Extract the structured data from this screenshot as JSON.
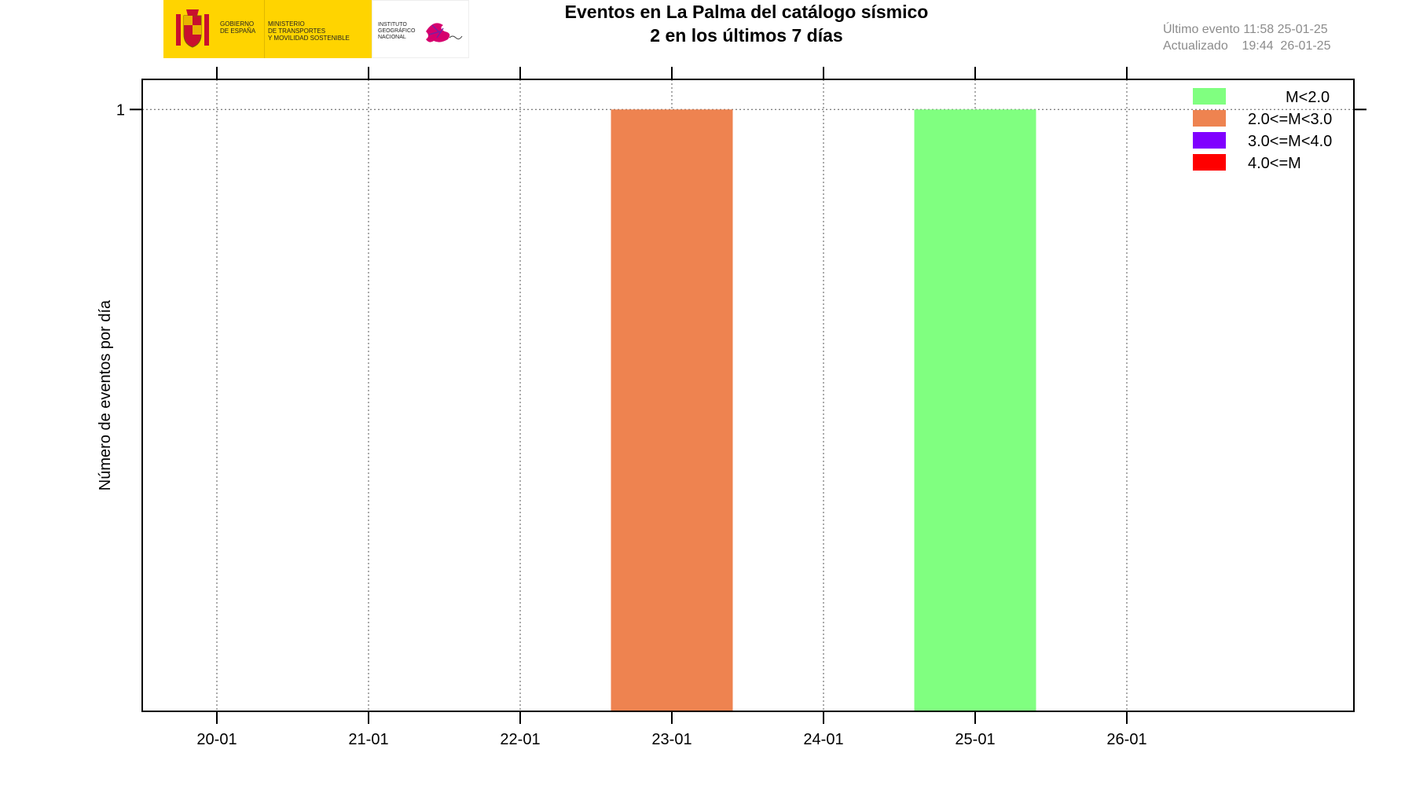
{
  "logo": {
    "government": "GOBIERNO\nDE ESPAÑA",
    "ministry": "MINISTERIO\nDE TRANSPORTES\nY MOVILIDAD SOSTENIBLE",
    "institute": "INSTITUTO\nGEOGRÁFICO\nNACIONAL",
    "colors": {
      "yellow": "#ffd400",
      "magenta": "#d6006e"
    }
  },
  "header": {
    "title_line1": "Eventos en La Palma del catálogo sísmico",
    "title_line2": "2 en los últimos 7 días"
  },
  "info": {
    "last_event": "Último evento 11:58 25-01-25",
    "updated": "Actualizado    19:44  26-01-25"
  },
  "chart_data": {
    "type": "bar",
    "stacked": true,
    "ylabel": "Número de eventos por día",
    "categories": [
      "20-01",
      "21-01",
      "22-01",
      "23-01",
      "24-01",
      "25-01",
      "26-01"
    ],
    "yticks": [
      1
    ],
    "ylim": [
      0,
      1.05
    ],
    "grid": true,
    "legend_position": "top-right",
    "series": [
      {
        "name": "M<2.0",
        "color": "#80ff80",
        "values": [
          0,
          0,
          0,
          0,
          0,
          1,
          0
        ]
      },
      {
        "name": "2.0<=M<3.0",
        "color": "#ee8350",
        "values": [
          0,
          0,
          0,
          1,
          0,
          0,
          0
        ]
      },
      {
        "name": "3.0<=M<4.0",
        "color": "#8000ff",
        "values": [
          0,
          0,
          0,
          0,
          0,
          0,
          0
        ]
      },
      {
        "name": "4.0<=M",
        "color": "#ff0000",
        "values": [
          0,
          0,
          0,
          0,
          0,
          0,
          0
        ]
      }
    ]
  }
}
